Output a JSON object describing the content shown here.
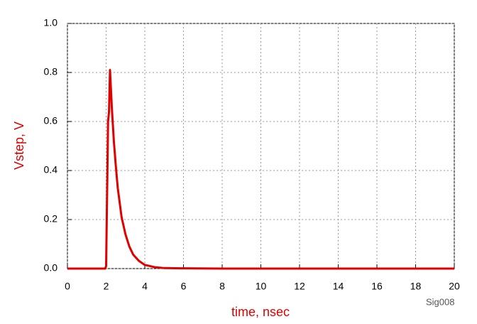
{
  "chart_data": {
    "type": "line",
    "xlabel": "time, nsec",
    "ylabel": "Vstep, V",
    "watermark": "Sig008",
    "x": [
      0,
      1,
      1.95,
      2.0,
      2.05,
      2.1,
      2.15,
      2.2,
      2.3,
      2.4,
      2.5,
      2.6,
      2.8,
      3.0,
      3.2,
      3.4,
      3.7,
      4.0,
      4.5,
      5.0,
      6.0,
      8,
      10,
      12,
      14,
      16,
      18,
      20
    ],
    "values": [
      0,
      0,
      0,
      0.01,
      0.3,
      0.6,
      0.64,
      0.81,
      0.65,
      0.52,
      0.42,
      0.33,
      0.21,
      0.14,
      0.09,
      0.057,
      0.031,
      0.015,
      0.006,
      0.002,
      0.001,
      0,
      0,
      0,
      0,
      0,
      0,
      0
    ],
    "color": "#e00000",
    "xlim": [
      0,
      20
    ],
    "xticks": [
      0,
      2,
      4,
      6,
      8,
      10,
      12,
      14,
      16,
      18,
      20
    ],
    "ylim": [
      0,
      1
    ],
    "yticks": [
      {
        "value": 0,
        "label": "0.0"
      },
      0.2,
      0.4,
      0.6,
      0.8,
      {
        "value": 1,
        "label": "1.0"
      }
    ],
    "grid": true
  }
}
